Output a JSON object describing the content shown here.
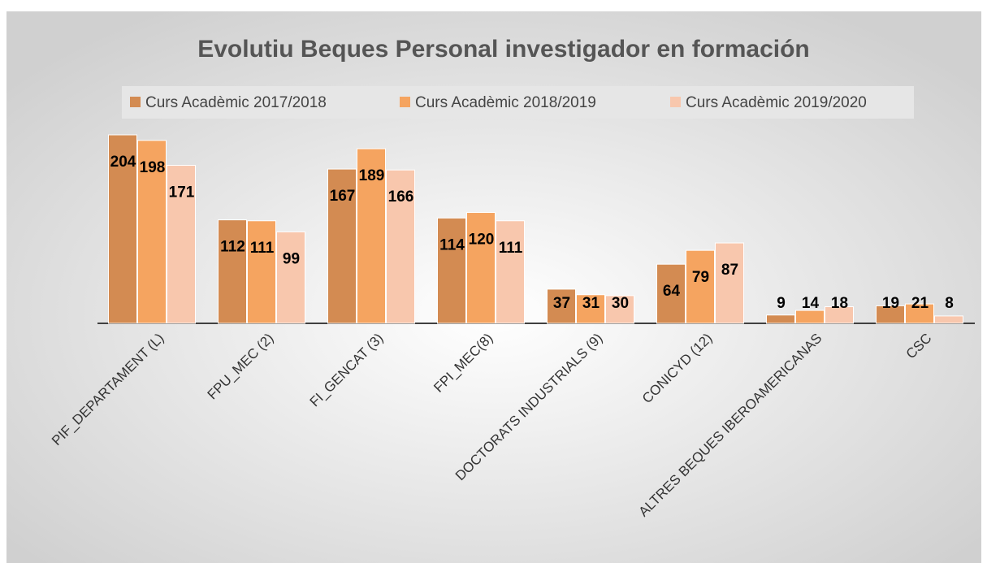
{
  "chart_data": {
    "type": "bar",
    "title": "Evolutiu Beques Personal investigador en formación",
    "categories": [
      "PIF_DEPARTAMENT (L)",
      "FPU_MEC (2)",
      "FI_GENCAT (3)",
      "FPI_MEC(8)",
      "DOCTORATS INDUSTRIALS (9)",
      "CONICYD (12)",
      "ALTRES BEQUES IBEROAMERICANAS",
      "CSC"
    ],
    "series": [
      {
        "name": "Curs Acadèmic 2017/2018",
        "color": "#d38b52",
        "values": [
          204,
          112,
          167,
          114,
          37,
          64,
          9,
          19
        ]
      },
      {
        "name": "Curs Acadèmic 2018/2019",
        "color": "#f5a460",
        "values": [
          198,
          111,
          189,
          120,
          31,
          79,
          14,
          21
        ]
      },
      {
        "name": "Curs Acadèmic 2019/2020",
        "color": "#f8c7ad",
        "values": [
          171,
          99,
          166,
          111,
          30,
          87,
          18,
          8
        ]
      }
    ]
  }
}
